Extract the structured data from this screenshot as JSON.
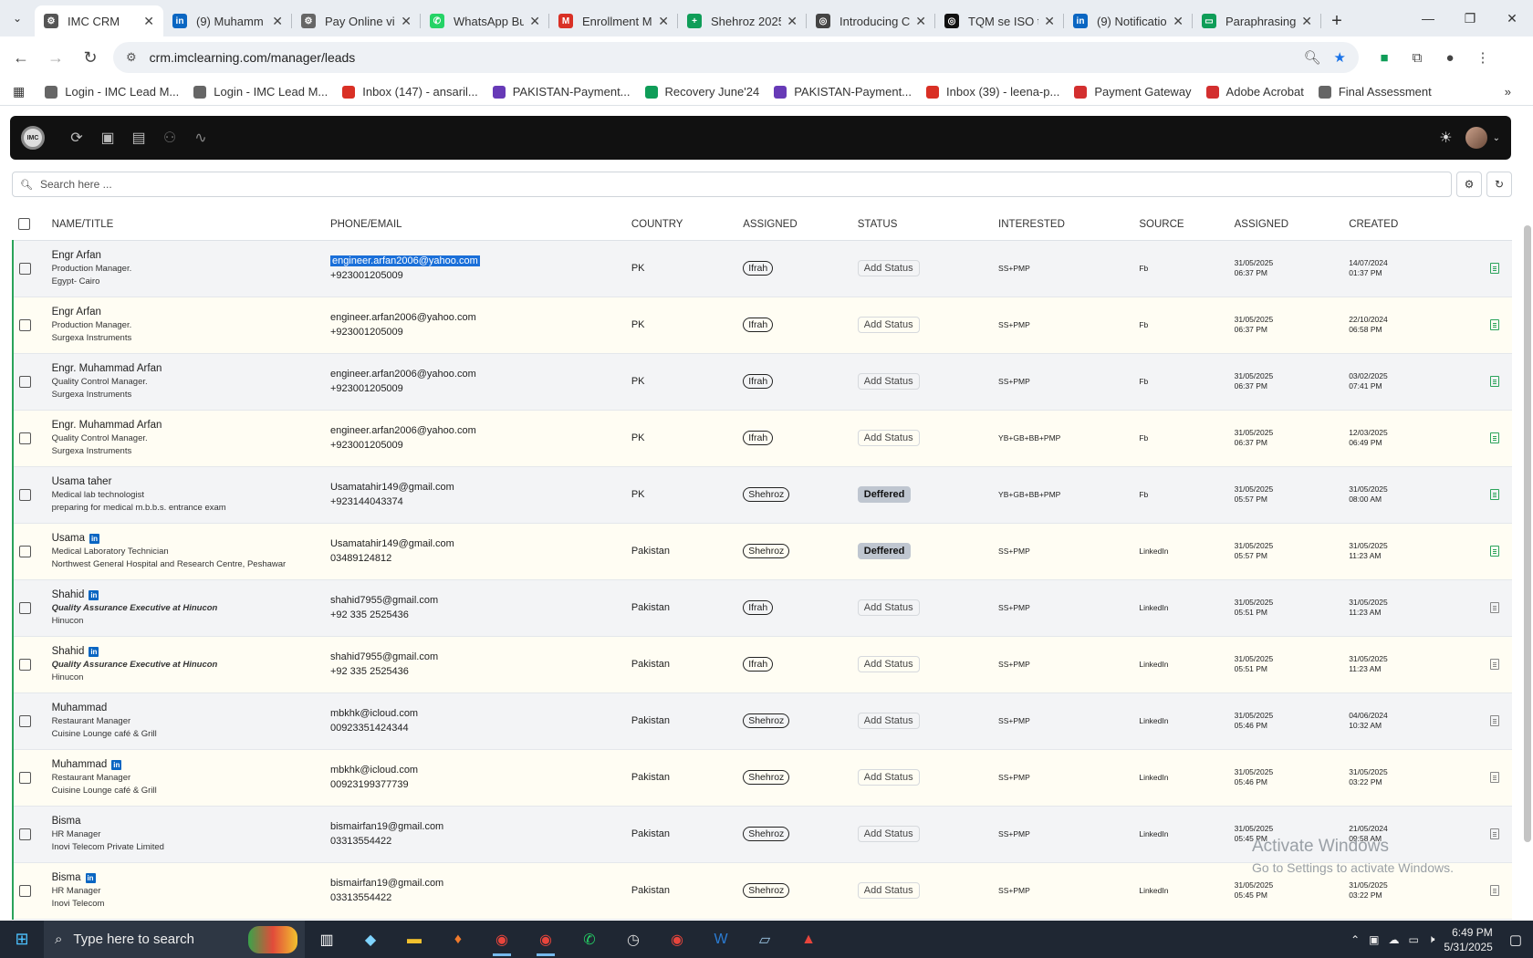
{
  "browser": {
    "tabs": [
      {
        "title": "IMC CRM",
        "color": "#555",
        "glyph": "⚙",
        "active": true
      },
      {
        "title": "(9) Muhamm",
        "color": "#0a66c2",
        "glyph": "in"
      },
      {
        "title": "Pay Online vi",
        "color": "#666",
        "glyph": "⚙"
      },
      {
        "title": "WhatsApp Bu",
        "color": "#25d366",
        "glyph": "✆"
      },
      {
        "title": "Enrollment M",
        "color": "#d93025",
        "glyph": "M"
      },
      {
        "title": "Shehroz 2025",
        "color": "#0f9d58",
        "glyph": "+"
      },
      {
        "title": "Introducing C",
        "color": "#444",
        "glyph": "◎"
      },
      {
        "title": "TQM se ISO t",
        "color": "#111",
        "glyph": "◎"
      },
      {
        "title": "(9) Notificatio",
        "color": "#0a66c2",
        "glyph": "in"
      },
      {
        "title": "Paraphrasing",
        "color": "#0f9d58",
        "glyph": "▭"
      }
    ],
    "url": "crm.imclearning.com/manager/leads",
    "bookmarks": [
      {
        "label": "Login - IMC Lead M...",
        "color": "#666"
      },
      {
        "label": "Login - IMC Lead M...",
        "color": "#666"
      },
      {
        "label": "Inbox (147) - ansaril...",
        "color": "#d93025"
      },
      {
        "label": "PAKISTAN-Payment...",
        "color": "#673ab7"
      },
      {
        "label": "Recovery June'24",
        "color": "#0f9d58"
      },
      {
        "label": "PAKISTAN-Payment...",
        "color": "#673ab7"
      },
      {
        "label": "Inbox (39) - leena-p...",
        "color": "#d93025"
      },
      {
        "label": "Payment Gateway",
        "color": "#d32f2f"
      },
      {
        "label": "Adobe Acrobat",
        "color": "#d32f2f"
      },
      {
        "label": "Final Assessment",
        "color": "#666"
      }
    ]
  },
  "app": {
    "search_placeholder": "Search here ...",
    "columns": [
      "NAME/TITLE",
      "PHONE/EMAIL",
      "COUNTRY",
      "ASSIGNED",
      "STATUS",
      "INTERESTED",
      "SOURCE",
      "ASSIGNED",
      "CREATED"
    ],
    "rows": [
      {
        "name": "Engr Arfan",
        "li": false,
        "title": "Production Manager.",
        "title_italic": false,
        "org": "Egypt- Cairo",
        "email": "engineer.arfan2006@yahoo.com",
        "email_selected": true,
        "phone": "+923001205009",
        "country": "PK",
        "assigned": "Ifrah",
        "status": "Add Status",
        "status_deferred": false,
        "interested": "SS+PMP",
        "source": "Fb",
        "assigned_date": "31/05/2025",
        "assigned_time": "06:37 PM",
        "created_date": "14/07/2024",
        "created_time": "01:37 PM",
        "doc_green": true
      },
      {
        "name": "Engr Arfan",
        "li": false,
        "title": "Production Manager.",
        "title_italic": false,
        "org": "Surgexa Instruments",
        "email": "engineer.arfan2006@yahoo.com",
        "email_selected": false,
        "phone": "+923001205009",
        "country": "PK",
        "assigned": "Ifrah",
        "status": "Add Status",
        "status_deferred": false,
        "interested": "SS+PMP",
        "source": "Fb",
        "assigned_date": "31/05/2025",
        "assigned_time": "06:37 PM",
        "created_date": "22/10/2024",
        "created_time": "06:58 PM",
        "doc_green": true
      },
      {
        "name": "Engr. Muhammad Arfan",
        "li": false,
        "title": "Quality Control Manager.",
        "title_italic": false,
        "org": "Surgexa Instruments",
        "email": "engineer.arfan2006@yahoo.com",
        "email_selected": false,
        "phone": "+923001205009",
        "country": "PK",
        "assigned": "Ifrah",
        "status": "Add Status",
        "status_deferred": false,
        "interested": "SS+PMP",
        "source": "Fb",
        "assigned_date": "31/05/2025",
        "assigned_time": "06:37 PM",
        "created_date": "03/02/2025",
        "created_time": "07:41 PM",
        "doc_green": true
      },
      {
        "name": "Engr. Muhammad Arfan",
        "li": false,
        "title": "Quality Control Manager.",
        "title_italic": false,
        "org": "Surgexa Instruments",
        "email": "engineer.arfan2006@yahoo.com",
        "email_selected": false,
        "phone": "+923001205009",
        "country": "PK",
        "assigned": "Ifrah",
        "status": "Add Status",
        "status_deferred": false,
        "interested": "YB+GB+BB+PMP",
        "source": "Fb",
        "assigned_date": "31/05/2025",
        "assigned_time": "06:37 PM",
        "created_date": "12/03/2025",
        "created_time": "06:49 PM",
        "doc_green": true
      },
      {
        "name": "Usama taher",
        "li": false,
        "title": "Medical lab technologist",
        "title_italic": false,
        "org": "preparing for medical m.b.b.s. entrance exam",
        "email": "Usamatahir149@gmail.com",
        "email_selected": false,
        "phone": "+923144043374",
        "country": "PK",
        "assigned": "Shehroz",
        "status": "Deffered",
        "status_deferred": true,
        "interested": "YB+GB+BB+PMP",
        "source": "Fb",
        "assigned_date": "31/05/2025",
        "assigned_time": "05:57 PM",
        "created_date": "31/05/2025",
        "created_time": "08:00 AM",
        "doc_green": true
      },
      {
        "name": "Usama",
        "li": true,
        "title": "Medical Laboratory Technician",
        "title_italic": false,
        "org": "Northwest General Hospital and Research Centre, Peshawar",
        "email": "Usamatahir149@gmail.com",
        "email_selected": false,
        "phone": "03489124812",
        "country": "Pakistan",
        "assigned": "Shehroz",
        "status": "Deffered",
        "status_deferred": true,
        "interested": "SS+PMP",
        "source": "LinkedIn",
        "assigned_date": "31/05/2025",
        "assigned_time": "05:57 PM",
        "created_date": "31/05/2025",
        "created_time": "11:23 AM",
        "doc_green": true
      },
      {
        "name": "Shahid",
        "li": true,
        "title": "Quality Assurance Executive at Hinucon",
        "title_italic": true,
        "org": "Hinucon",
        "email": "shahid7955@gmail.com",
        "email_selected": false,
        "phone": "+92 335 2525436",
        "country": "Pakistan",
        "assigned": "Ifrah",
        "status": "Add Status",
        "status_deferred": false,
        "interested": "SS+PMP",
        "source": "LinkedIn",
        "assigned_date": "31/05/2025",
        "assigned_time": "05:51 PM",
        "created_date": "31/05/2025",
        "created_time": "11:23 AM",
        "doc_green": false
      },
      {
        "name": "Shahid",
        "li": true,
        "title": "Quality Assurance Executive at Hinucon",
        "title_italic": true,
        "org": "Hinucon",
        "email": "shahid7955@gmail.com",
        "email_selected": false,
        "phone": "+92 335 2525436",
        "country": "Pakistan",
        "assigned": "Ifrah",
        "status": "Add Status",
        "status_deferred": false,
        "interested": "SS+PMP",
        "source": "LinkedIn",
        "assigned_date": "31/05/2025",
        "assigned_time": "05:51 PM",
        "created_date": "31/05/2025",
        "created_time": "11:23 AM",
        "doc_green": false
      },
      {
        "name": "Muhammad",
        "li": false,
        "title": "Restaurant Manager",
        "title_italic": false,
        "org": "Cuisine Lounge café & Grill",
        "email": "mbkhk@icloud.com",
        "email_selected": false,
        "phone": "00923351424344",
        "country": "Pakistan",
        "assigned": "Shehroz",
        "status": "Add Status",
        "status_deferred": false,
        "interested": "SS+PMP",
        "source": "LinkedIn",
        "assigned_date": "31/05/2025",
        "assigned_time": "05:46 PM",
        "created_date": "04/06/2024",
        "created_time": "10:32 AM",
        "doc_green": false
      },
      {
        "name": "Muhammad",
        "li": true,
        "title": "Restaurant Manager",
        "title_italic": false,
        "org": "Cuisine Lounge café & Grill",
        "email": "mbkhk@icloud.com",
        "email_selected": false,
        "phone": "00923199377739",
        "country": "Pakistan",
        "assigned": "Shehroz",
        "status": "Add Status",
        "status_deferred": false,
        "interested": "SS+PMP",
        "source": "LinkedIn",
        "assigned_date": "31/05/2025",
        "assigned_time": "05:46 PM",
        "created_date": "31/05/2025",
        "created_time": "03:22 PM",
        "doc_green": false
      },
      {
        "name": "Bisma",
        "li": false,
        "title": "HR Manager",
        "title_italic": false,
        "org": "Inovi Telecom Private Limited",
        "email": "bismairfan19@gmail.com",
        "email_selected": false,
        "phone": "03313554422",
        "country": "Pakistan",
        "assigned": "Shehroz",
        "status": "Add Status",
        "status_deferred": false,
        "interested": "SS+PMP",
        "source": "LinkedIn",
        "assigned_date": "31/05/2025",
        "assigned_time": "05:45 PM",
        "created_date": "21/05/2024",
        "created_time": "09:58 AM",
        "doc_green": false
      },
      {
        "name": "Bisma",
        "li": true,
        "title": "HR Manager",
        "title_italic": false,
        "org": "Inovi Telecom",
        "email": "bismairfan19@gmail.com",
        "email_selected": false,
        "phone": "03313554422",
        "country": "Pakistan",
        "assigned": "Shehroz",
        "status": "Add Status",
        "status_deferred": false,
        "interested": "SS+PMP",
        "source": "LinkedIn",
        "assigned_date": "31/05/2025",
        "assigned_time": "05:45 PM",
        "created_date": "31/05/2025",
        "created_time": "03:22 PM",
        "doc_green": false
      }
    ]
  },
  "watermark": {
    "line1": "Activate Windows",
    "line2": "Go to Settings to activate Windows."
  },
  "taskbar": {
    "search_placeholder": "Type here to search",
    "time": "6:49 PM",
    "date": "5/31/2025"
  }
}
